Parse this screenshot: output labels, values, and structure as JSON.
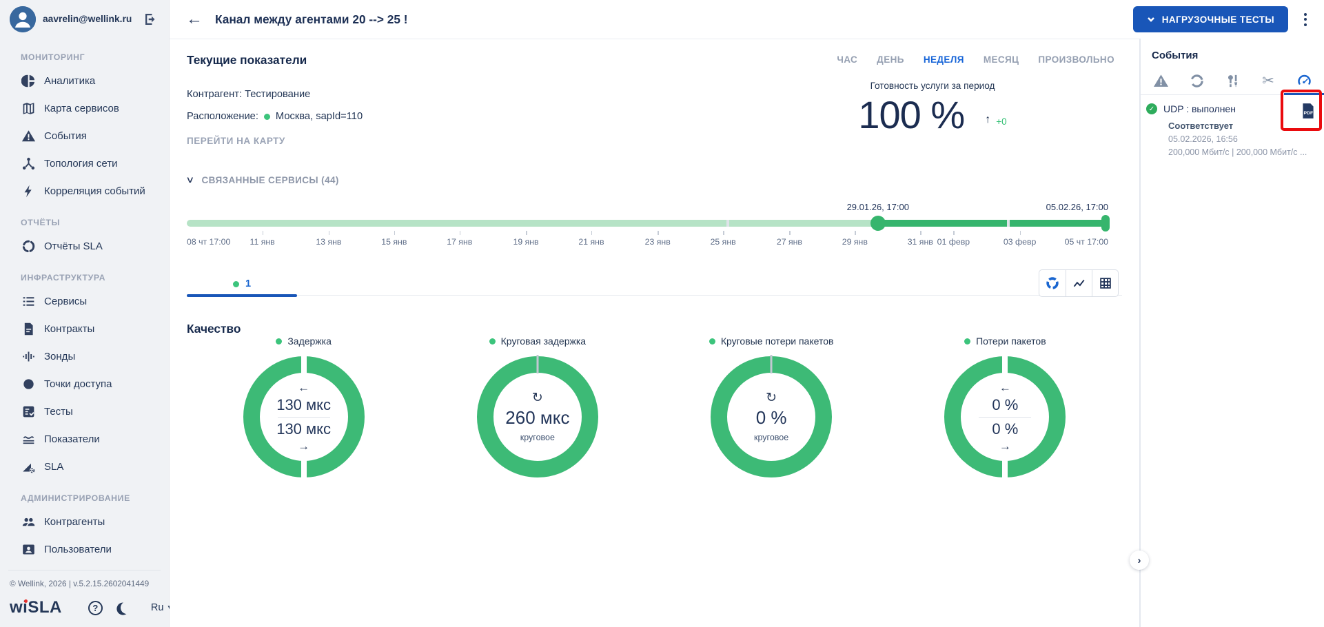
{
  "colors": {
    "accent_blue": "#1956b8",
    "active_tab_blue": "#1a66d0",
    "gauge_green": "#3dba76",
    "track_light_green": "#b6e3c6",
    "track_dark_green": "#36b56d",
    "status_green": "#3cc47c",
    "annotation_red": "#ea0b0e"
  },
  "sidebar": {
    "user_email": "aavrelin@wellink.ru",
    "sections": [
      {
        "label": "МОНИТОРИНГ",
        "items": [
          {
            "id": "analytics",
            "label": "Аналитика",
            "icon": "pie-chart-icon"
          },
          {
            "id": "service-map",
            "label": "Карта сервисов",
            "icon": "map-icon"
          },
          {
            "id": "events",
            "label": "События",
            "icon": "warning-triangle-icon"
          },
          {
            "id": "network-topology",
            "label": "Топология сети",
            "icon": "topology-icon"
          },
          {
            "id": "event-correlation",
            "label": "Корреляция событий",
            "icon": "lightning-icon"
          }
        ]
      },
      {
        "label": "ОТЧЁТЫ",
        "items": [
          {
            "id": "sla-reports",
            "label": "Отчёты SLA",
            "icon": "segmented-circle-icon"
          }
        ]
      },
      {
        "label": "ИНФРАСТРУКТУРА",
        "items": [
          {
            "id": "services",
            "label": "Сервисы",
            "icon": "list-icon"
          },
          {
            "id": "contracts",
            "label": "Контракты",
            "icon": "document-icon"
          },
          {
            "id": "probes",
            "label": "Зонды",
            "icon": "equalizer-icon"
          },
          {
            "id": "access-points",
            "label": "Точки доступа",
            "icon": "filled-circle-icon"
          },
          {
            "id": "tests",
            "label": "Тесты",
            "icon": "checklist-icon"
          },
          {
            "id": "indicators",
            "label": "Показатели",
            "icon": "waves-icon"
          },
          {
            "id": "sla",
            "label": "SLA",
            "icon": "sla-gear-icon"
          }
        ]
      },
      {
        "label": "АДМИНИСТРИРОВАНИЕ",
        "items": [
          {
            "id": "counterparties",
            "label": "Контрагенты",
            "icon": "people-icon"
          },
          {
            "id": "users",
            "label": "Пользователи",
            "icon": "user-card-icon"
          }
        ]
      }
    ],
    "footer": {
      "copyright": "© Wellink, 2026 | v.5.2.15.2602041449",
      "logo": "wiSLA",
      "language": "Ru"
    }
  },
  "header": {
    "title": "Канал между агентами 20 --> 25 !",
    "load_tests_button": "НАГРУЗОЧНЫЕ ТЕСТЫ"
  },
  "main": {
    "section_title": "Текущие показатели",
    "period_tabs": {
      "options": [
        "ЧАС",
        "ДЕНЬ",
        "НЕДЕЛЯ",
        "МЕСЯЦ",
        "ПРОИЗВОЛЬНО"
      ],
      "ids": [
        "hour",
        "day",
        "week",
        "month",
        "custom"
      ],
      "active": "НЕДЕЛЯ"
    },
    "contractor": "Контрагент: Тестирование",
    "location_label": "Расположение:",
    "location_value": "Москва, sapId=110",
    "map_link": "ПЕРЕЙТИ НА КАРТУ",
    "availability": {
      "label": "Готовность услуги за период",
      "value": "100 %",
      "arrow": "↑",
      "delta": "+0"
    },
    "related_services": "СВЯЗАННЫЕ СЕРВИСЫ (44)",
    "timeline": {
      "selection_start": "29.01.26, 17:00",
      "selection_end": "05.02.26, 17:00",
      "ticks": [
        "08 чт 17:00",
        "11 янв",
        "13 янв",
        "15 янв",
        "17 янв",
        "19 янв",
        "21 янв",
        "23 янв",
        "25 янв",
        "27 янв",
        "29 янв",
        "31 янв",
        "01 февр",
        "03 февр",
        "05 чт 17:00"
      ]
    },
    "chart_tab_label": "1",
    "quality": {
      "title": "Качество",
      "gauges": [
        {
          "id": "delay",
          "label": "Задержка",
          "type": "bidirectional",
          "forward_value": "130 мкс",
          "reverse_value": "130 мкс"
        },
        {
          "id": "round-trip-delay",
          "label": "Круговая задержка",
          "type": "roundtrip",
          "value": "260 мкс",
          "sublabel": "круговое"
        },
        {
          "id": "round-trip-packet-loss",
          "label": "Круговые потери пакетов",
          "type": "roundtrip",
          "value": "0 %",
          "sublabel": "круговое"
        },
        {
          "id": "packet-loss",
          "label": "Потери пакетов",
          "type": "bidirectional",
          "forward_value": "0 %",
          "reverse_value": "0 %"
        }
      ]
    }
  },
  "events_panel": {
    "title": "События",
    "filter_icons": [
      {
        "id": "alarms",
        "icon": "warning-triangle-icon"
      },
      {
        "id": "refresh",
        "icon": "refresh-icon"
      },
      {
        "id": "maintenance",
        "icon": "maintenance-icon"
      },
      {
        "id": "cut",
        "icon": "scissors-icon"
      },
      {
        "id": "load-tests",
        "icon": "speedometer-icon"
      }
    ],
    "active_filter": "load-tests",
    "event": {
      "name": "UDP : выполнен",
      "result": "Соответствует",
      "timestamp": "05.02.2026, 16:56",
      "details": "200,000 Мбит/с | 200,000 Мбит/с ...",
      "attachment_icon": "pdf-file-icon",
      "status_icon": "check-circle-icon"
    }
  }
}
